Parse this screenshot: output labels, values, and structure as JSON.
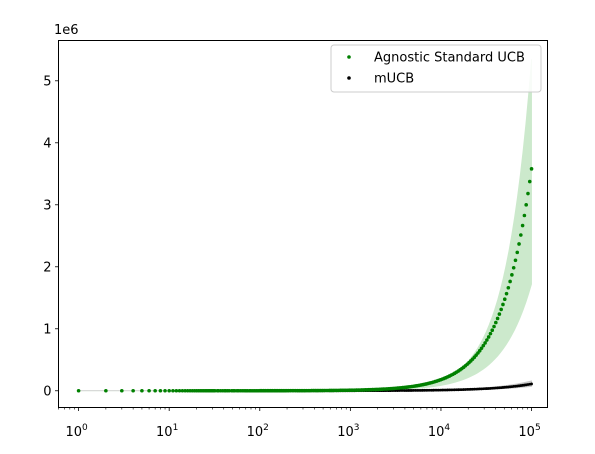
{
  "chart_data": {
    "type": "scatter",
    "title": "",
    "xlabel": "",
    "ylabel": "",
    "x_scale": "log",
    "xlim": [
      0.6,
      150000
    ],
    "ylim": [
      -0.27,
      5.65
    ],
    "y_offset_label": "1e6",
    "y_multiplier": 1000000,
    "x_ticks": [
      {
        "base": "10",
        "exp": "0",
        "value": 1
      },
      {
        "base": "10",
        "exp": "1",
        "value": 10
      },
      {
        "base": "10",
        "exp": "2",
        "value": 100
      },
      {
        "base": "10",
        "exp": "3",
        "value": 1000
      },
      {
        "base": "10",
        "exp": "4",
        "value": 10000
      },
      {
        "base": "10",
        "exp": "5",
        "value": 100000
      }
    ],
    "y_ticks": [
      {
        "label": "0",
        "value": 0
      },
      {
        "label": "1",
        "value": 1
      },
      {
        "label": "2",
        "value": 2
      },
      {
        "label": "3",
        "value": 3
      },
      {
        "label": "4",
        "value": 4
      },
      {
        "label": "5",
        "value": 5
      }
    ],
    "grid": false,
    "legend_position": "top-right",
    "series": [
      {
        "name": "Agnostic Standard UCB",
        "color": "#008000",
        "band_color": "#cce9cc",
        "growth": 1.3,
        "band_growth": 1.5,
        "mean_end": 3.58,
        "upper_end": 5.35,
        "lower_end": 1.72
      },
      {
        "name": "mUCB",
        "color": "#000000",
        "band_color": "#c8c8c8",
        "growth": 1.0,
        "band_growth": 1.0,
        "mean_end": 0.11,
        "upper_end": 0.16,
        "lower_end": 0.07
      }
    ]
  }
}
